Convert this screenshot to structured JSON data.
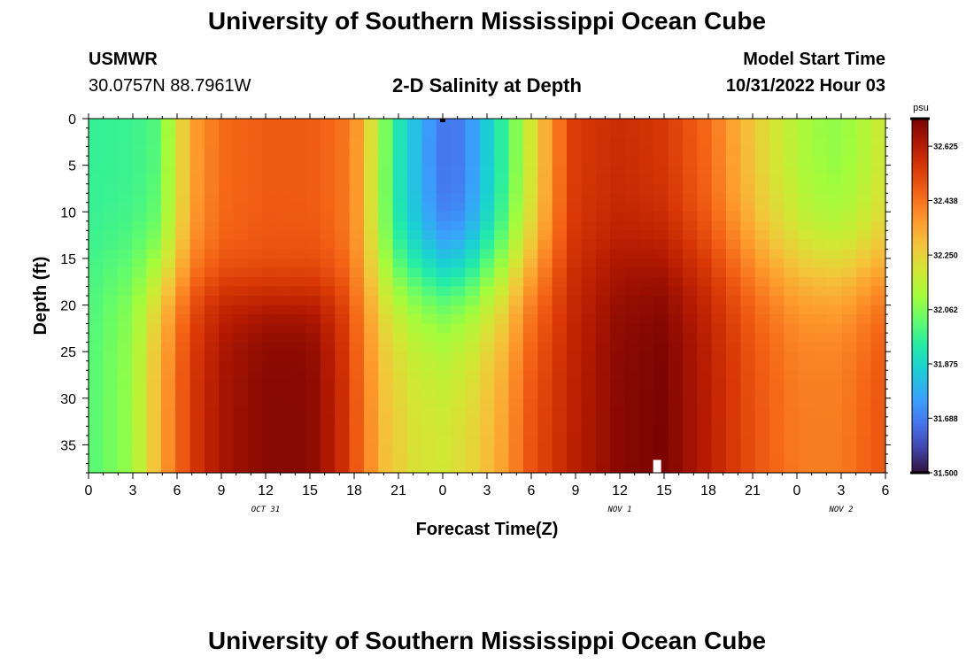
{
  "header": {
    "title_top": "University of Southern Mississippi Ocean Cube",
    "station": "USMWR",
    "coords": "30.0757N  88.7961W",
    "subtitle": "2-D Salinity at Depth",
    "model_start_label": "Model Start Time",
    "model_start_value": "10/31/2022 Hour 03"
  },
  "footer": {
    "title_bottom": "University of Southern Mississippi Ocean Cube"
  },
  "chart_data": {
    "type": "heatmap",
    "title": "2-D Salinity at Depth",
    "xlabel": "Forecast Time(Z)",
    "ylabel": "Depth (ft)",
    "x_ticks": [
      "0",
      "3",
      "6",
      "9",
      "12",
      "15",
      "18",
      "21",
      "0",
      "3",
      "6",
      "9",
      "12",
      "15",
      "18",
      "21",
      "0",
      "3",
      "6"
    ],
    "x_tick_hours": [
      0,
      3,
      6,
      9,
      12,
      15,
      18,
      21,
      24,
      27,
      30,
      33,
      36,
      39,
      42,
      45,
      48,
      51,
      54
    ],
    "x_range_hours": [
      0,
      54
    ],
    "date_labels": [
      {
        "text": "OCT 31",
        "hour": 12
      },
      {
        "text": "NOV 1",
        "hour": 36
      },
      {
        "text": "NOV 2",
        "hour": 51
      }
    ],
    "y_ticks": [
      0,
      5,
      10,
      15,
      20,
      25,
      30,
      35
    ],
    "y_range_ft": [
      0,
      38
    ],
    "colorbar": {
      "unit": "psu",
      "min": 31.5,
      "max": 32.72,
      "tick_labels": [
        "32.625",
        "32.438",
        "32.250",
        "32.062",
        "31.875",
        "31.688",
        "31.500"
      ],
      "tick_values": [
        32.625,
        32.438,
        32.25,
        32.062,
        31.875,
        31.688,
        31.5
      ]
    },
    "grid_rows": 38,
    "grid_cols": 55,
    "salinity_features_note": [],
    "markers": [
      {
        "hour": 24,
        "depth": 0
      },
      {
        "hour": 38.5,
        "depth": 37
      }
    ]
  }
}
